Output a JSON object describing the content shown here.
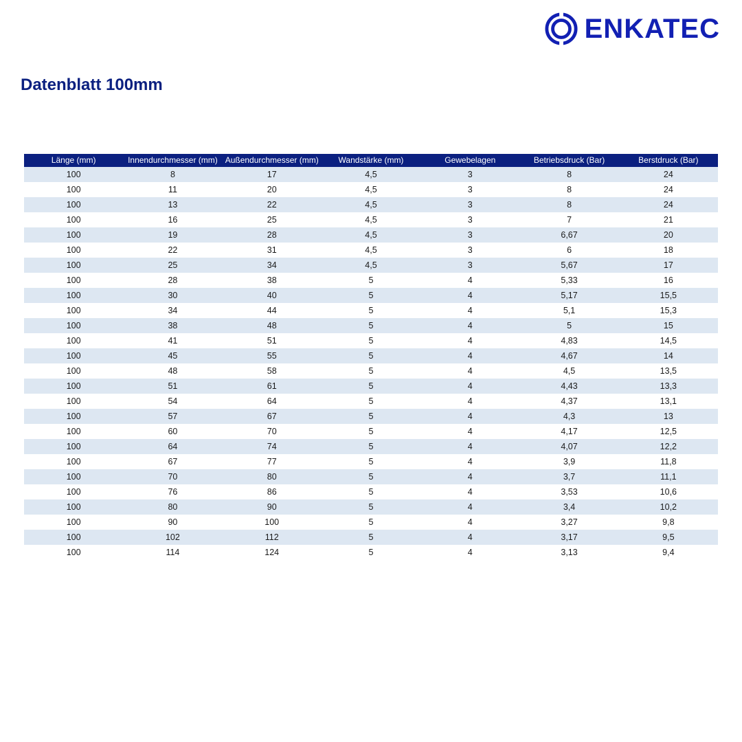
{
  "brand": {
    "name": "ENKATEC",
    "logo_color": "#1220b3"
  },
  "title": "Datenblatt 100mm",
  "title_color": "#0b2080",
  "table": {
    "type": "table",
    "header_bg": "#0b2080",
    "header_text_color": "#ffffff",
    "stripe_bg": "#dde7f2",
    "plain_bg": "#ffffff",
    "cell_text_color": "#1a1a1a",
    "header_fontsize": 12,
    "cell_fontsize": 12.5,
    "columns": [
      "Länge (mm)",
      "Innendurchmesser (mm)",
      "Außendurchmesser (mm)",
      "Wandstärke (mm)",
      "Gewebelagen",
      "Betriebsdruck (Bar)",
      "Berstdruck (Bar)"
    ],
    "rows": [
      [
        "100",
        "8",
        "17",
        "4,5",
        "3",
        "8",
        "24"
      ],
      [
        "100",
        "11",
        "20",
        "4,5",
        "3",
        "8",
        "24"
      ],
      [
        "100",
        "13",
        "22",
        "4,5",
        "3",
        "8",
        "24"
      ],
      [
        "100",
        "16",
        "25",
        "4,5",
        "3",
        "7",
        "21"
      ],
      [
        "100",
        "19",
        "28",
        "4,5",
        "3",
        "6,67",
        "20"
      ],
      [
        "100",
        "22",
        "31",
        "4,5",
        "3",
        "6",
        "18"
      ],
      [
        "100",
        "25",
        "34",
        "4,5",
        "3",
        "5,67",
        "17"
      ],
      [
        "100",
        "28",
        "38",
        "5",
        "4",
        "5,33",
        "16"
      ],
      [
        "100",
        "30",
        "40",
        "5",
        "4",
        "5,17",
        "15,5"
      ],
      [
        "100",
        "34",
        "44",
        "5",
        "4",
        "5,1",
        "15,3"
      ],
      [
        "100",
        "38",
        "48",
        "5",
        "4",
        "5",
        "15"
      ],
      [
        "100",
        "41",
        "51",
        "5",
        "4",
        "4,83",
        "14,5"
      ],
      [
        "100",
        "45",
        "55",
        "5",
        "4",
        "4,67",
        "14"
      ],
      [
        "100",
        "48",
        "58",
        "5",
        "4",
        "4,5",
        "13,5"
      ],
      [
        "100",
        "51",
        "61",
        "5",
        "4",
        "4,43",
        "13,3"
      ],
      [
        "100",
        "54",
        "64",
        "5",
        "4",
        "4,37",
        "13,1"
      ],
      [
        "100",
        "57",
        "67",
        "5",
        "4",
        "4,3",
        "13"
      ],
      [
        "100",
        "60",
        "70",
        "5",
        "4",
        "4,17",
        "12,5"
      ],
      [
        "100",
        "64",
        "74",
        "5",
        "4",
        "4,07",
        "12,2"
      ],
      [
        "100",
        "67",
        "77",
        "5",
        "4",
        "3,9",
        "11,8"
      ],
      [
        "100",
        "70",
        "80",
        "5",
        "4",
        "3,7",
        "11,1"
      ],
      [
        "100",
        "76",
        "86",
        "5",
        "4",
        "3,53",
        "10,6"
      ],
      [
        "100",
        "80",
        "90",
        "5",
        "4",
        "3,4",
        "10,2"
      ],
      [
        "100",
        "90",
        "100",
        "5",
        "4",
        "3,27",
        "9,8"
      ],
      [
        "100",
        "102",
        "112",
        "5",
        "4",
        "3,17",
        "9,5"
      ],
      [
        "100",
        "114",
        "124",
        "5",
        "4",
        "3,13",
        "9,4"
      ]
    ]
  }
}
